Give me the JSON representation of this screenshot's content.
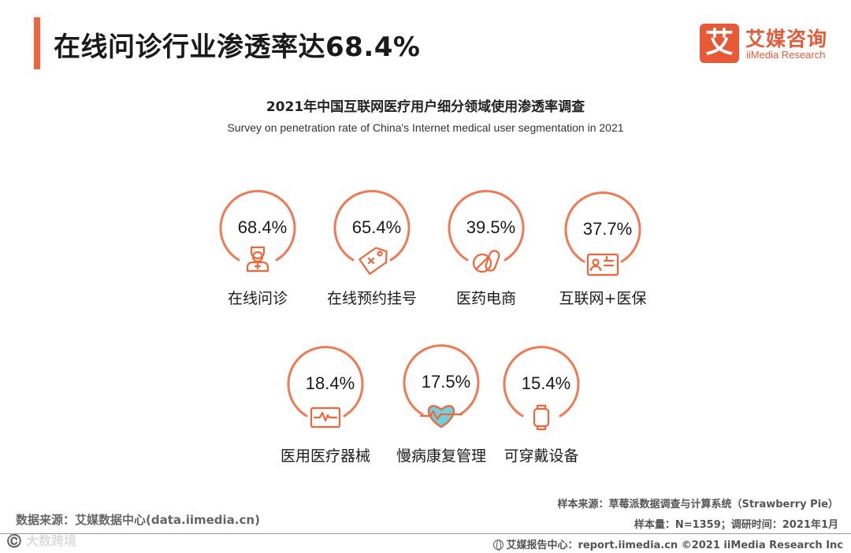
{
  "header": {
    "title": "在线问诊行业渗透率达68.4%",
    "logo_mark": "艾",
    "logo_cn": "艾媒咨询",
    "logo_en": "iiMedia Research"
  },
  "chart_data": {
    "type": "gauge",
    "title": "2021年中国互联网医疗用户细分领域使用渗透率调查",
    "subtitle": "Survey on penetration rate of China's Internet medical user segmentation in 2021",
    "unit": "%",
    "categories": [
      "在线问诊",
      "在线预约挂号",
      "医药电商",
      "互联网+医保",
      "医用医疗器械",
      "慢病康复管理",
      "可穿戴设备"
    ],
    "values": [
      68.4,
      65.4,
      39.5,
      37.7,
      18.4,
      17.5,
      15.4
    ],
    "labels": [
      "68.4%",
      "65.4%",
      "39.5%",
      "37.7%",
      "18.4%",
      "17.5%",
      "15.4%"
    ],
    "icons": [
      "doctor-icon",
      "price-tag-icon",
      "pill-icon",
      "insurance-card-icon",
      "ecg-monitor-icon",
      "heart-rate-icon",
      "smartwatch-icon"
    ]
  },
  "colors": {
    "accent": "#f0663a",
    "ring": "#ef7a55"
  },
  "footer": {
    "data_source": "数据来源：艾媒数据中心(data.iimedia.cn)",
    "watermark": "©️ 大数跨境",
    "sample_source": "样本来源：草莓派数据调查与计算系统（Strawberry Pie）",
    "sample_info": "样本量：N=1359；调研时间：2021年1月",
    "copyright": "艾媒报告中心：report.iimedia.cn  ©2021  iiMedia Research  Inc"
  }
}
